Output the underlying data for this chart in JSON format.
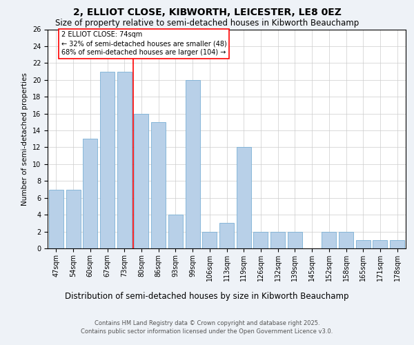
{
  "title": "2, ELLIOT CLOSE, KIBWORTH, LEICESTER, LE8 0EZ",
  "subtitle": "Size of property relative to semi-detached houses in Kibworth Beauchamp",
  "xlabel": "Distribution of semi-detached houses by size in Kibworth Beauchamp",
  "ylabel": "Number of semi-detached properties",
  "categories": [
    "47sqm",
    "54sqm",
    "60sqm",
    "67sqm",
    "73sqm",
    "80sqm",
    "86sqm",
    "93sqm",
    "99sqm",
    "106sqm",
    "113sqm",
    "119sqm",
    "126sqm",
    "132sqm",
    "139sqm",
    "145sqm",
    "152sqm",
    "158sqm",
    "165sqm",
    "171sqm",
    "178sqm"
  ],
  "values": [
    7,
    7,
    13,
    21,
    21,
    16,
    15,
    4,
    20,
    2,
    3,
    12,
    2,
    2,
    2,
    0,
    2,
    2,
    1,
    1,
    1
  ],
  "bar_color": "#b8d0e8",
  "bar_edge_color": "#7aafd4",
  "marker_line_index": 4,
  "marker_label": "2 ELLIOT CLOSE: 74sqm",
  "annotation_line1": "← 32% of semi-detached houses are smaller (48)",
  "annotation_line2": "68% of semi-detached houses are larger (104) →",
  "ylim": [
    0,
    26
  ],
  "yticks": [
    0,
    2,
    4,
    6,
    8,
    10,
    12,
    14,
    16,
    18,
    20,
    22,
    24,
    26
  ],
  "footnote1": "Contains HM Land Registry data © Crown copyright and database right 2025.",
  "footnote2": "Contains public sector information licensed under the Open Government Licence v3.0.",
  "bg_color": "#eef2f7",
  "plot_bg_color": "#ffffff",
  "grid_color": "#cccccc",
  "title_fontsize": 10,
  "subtitle_fontsize": 8.5,
  "xlabel_fontsize": 8.5,
  "ylabel_fontsize": 7.5,
  "tick_fontsize": 7,
  "footnote_fontsize": 6,
  "annot_fontsize": 7
}
